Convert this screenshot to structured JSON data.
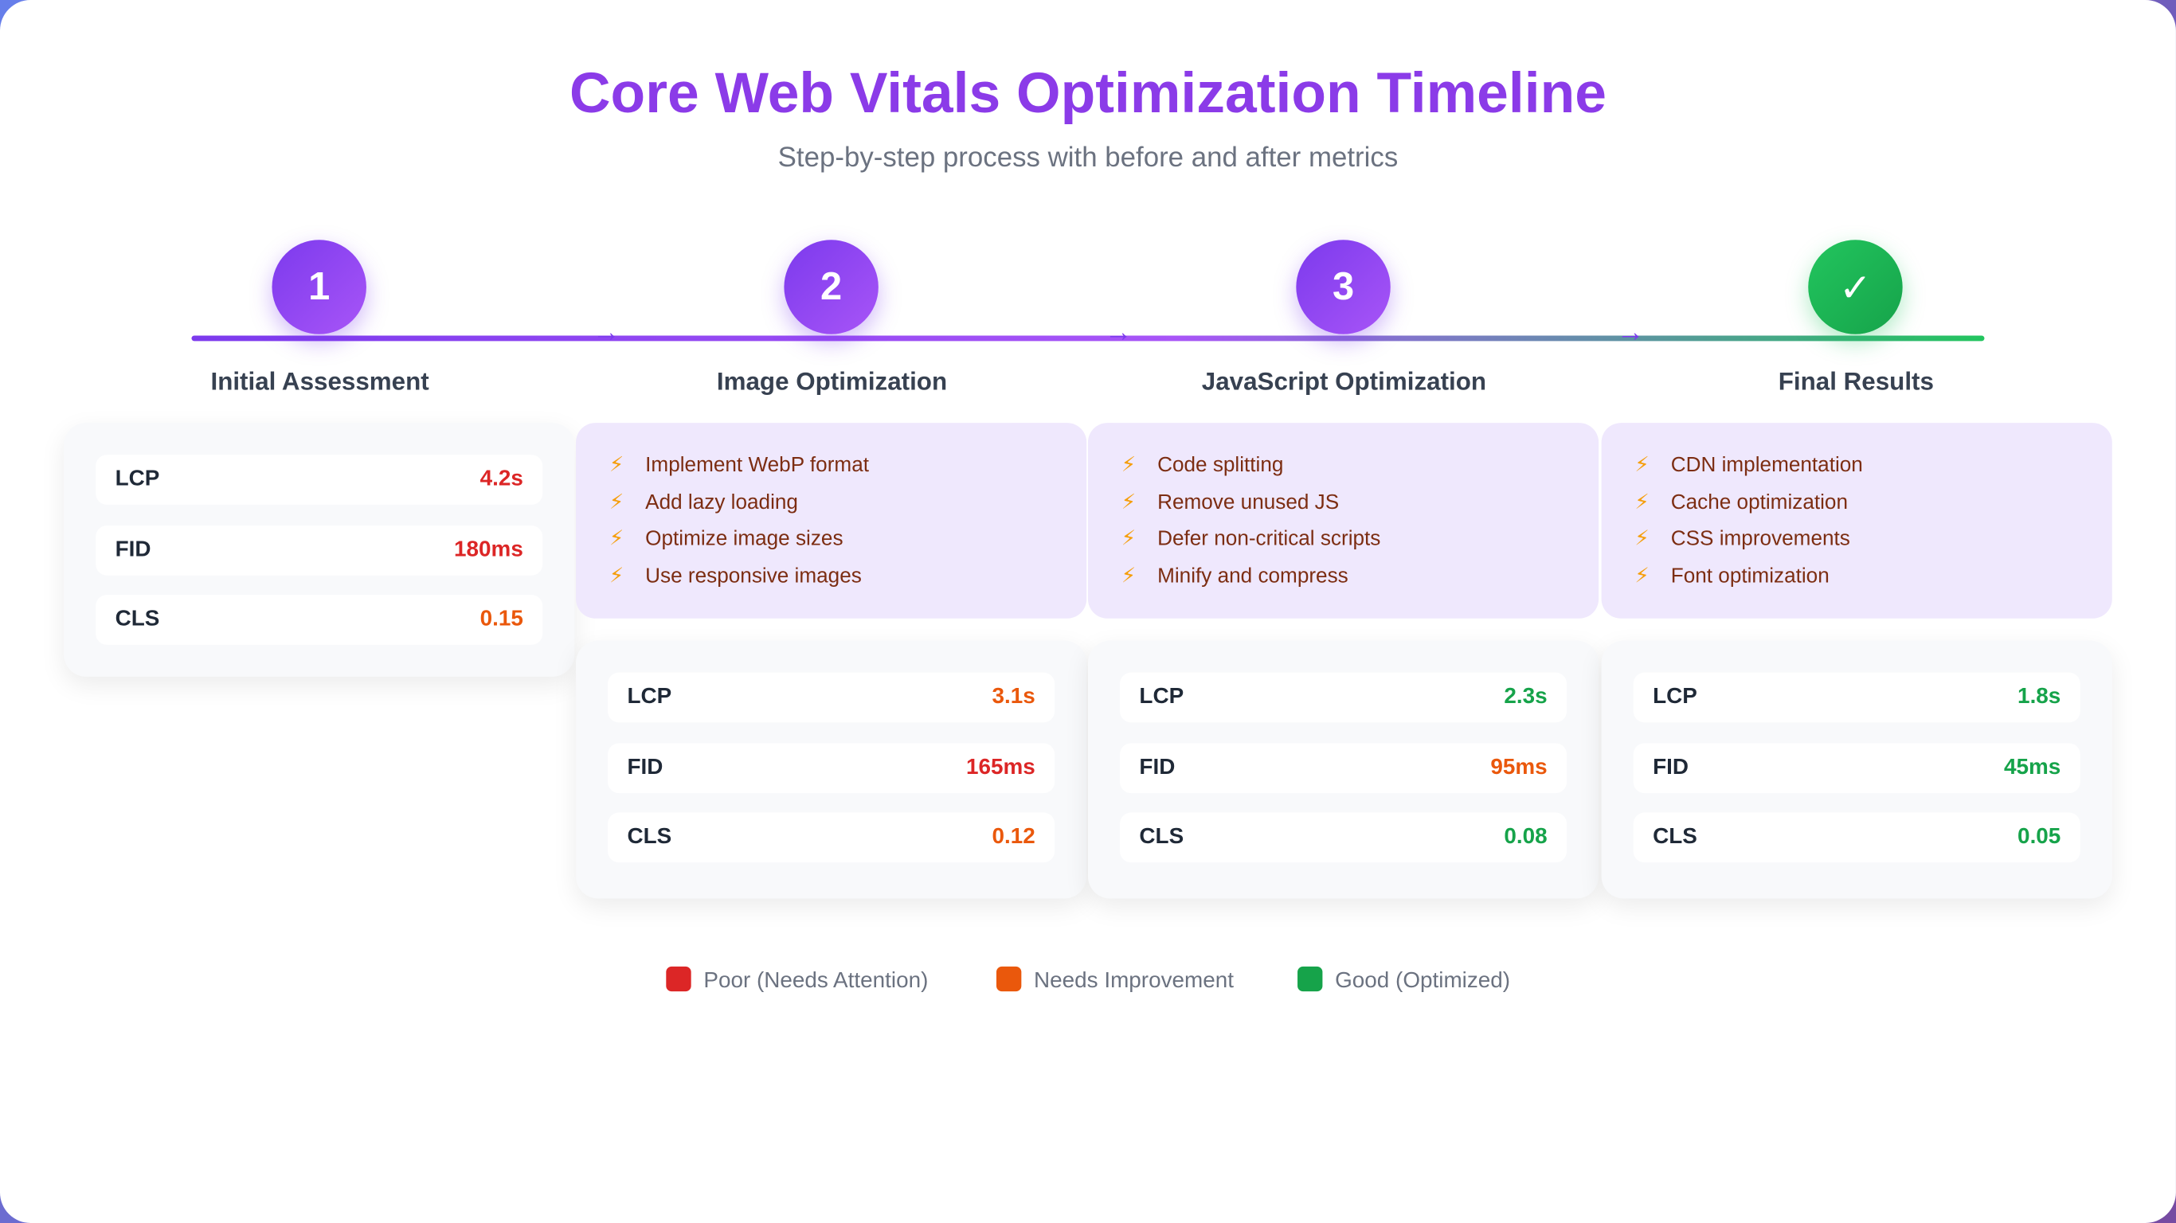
{
  "header": {
    "title": "Core Web Vitals Optimization Timeline",
    "subtitle": "Step-by-step process with before and after metrics"
  },
  "steps": [
    {
      "number": "1",
      "title": "Initial Assessment",
      "actions": [],
      "metrics": [
        {
          "name": "LCP",
          "value": "4.2s",
          "color": "#dc2626"
        },
        {
          "name": "FID",
          "value": "180ms",
          "color": "#dc2626"
        },
        {
          "name": "CLS",
          "value": "0.15",
          "color": "#ea580c"
        }
      ]
    },
    {
      "number": "2",
      "title": "Image Optimization",
      "actions": [
        "Implement WebP format",
        "Add lazy loading",
        "Optimize image sizes",
        "Use responsive images"
      ],
      "metrics": [
        {
          "name": "LCP",
          "value": "3.1s",
          "color": "#ea580c"
        },
        {
          "name": "FID",
          "value": "165ms",
          "color": "#dc2626"
        },
        {
          "name": "CLS",
          "value": "0.12",
          "color": "#ea580c"
        }
      ]
    },
    {
      "number": "3",
      "title": "JavaScript Optimization",
      "actions": [
        "Code splitting",
        "Remove unused JS",
        "Defer non-critical scripts",
        "Minify and compress"
      ],
      "metrics": [
        {
          "name": "LCP",
          "value": "2.3s",
          "color": "#16a34a"
        },
        {
          "name": "FID",
          "value": "95ms",
          "color": "#ea580c"
        },
        {
          "name": "CLS",
          "value": "0.08",
          "color": "#16a34a"
        }
      ]
    },
    {
      "number": "✓",
      "title": "Final Results",
      "actions": [
        "CDN implementation",
        "Cache optimization",
        "CSS improvements",
        "Font optimization"
      ],
      "metrics": [
        {
          "name": "LCP",
          "value": "1.8s",
          "color": "#16a34a"
        },
        {
          "name": "FID",
          "value": "45ms",
          "color": "#16a34a"
        },
        {
          "name": "CLS",
          "value": "0.05",
          "color": "#16a34a"
        }
      ]
    }
  ],
  "legend": [
    {
      "label": "Poor (Needs Attention)",
      "color": "#dc2626"
    },
    {
      "label": "Needs Improvement",
      "color": "#ea580c"
    },
    {
      "label": "Good (Optimized)",
      "color": "#16a34a"
    }
  ]
}
